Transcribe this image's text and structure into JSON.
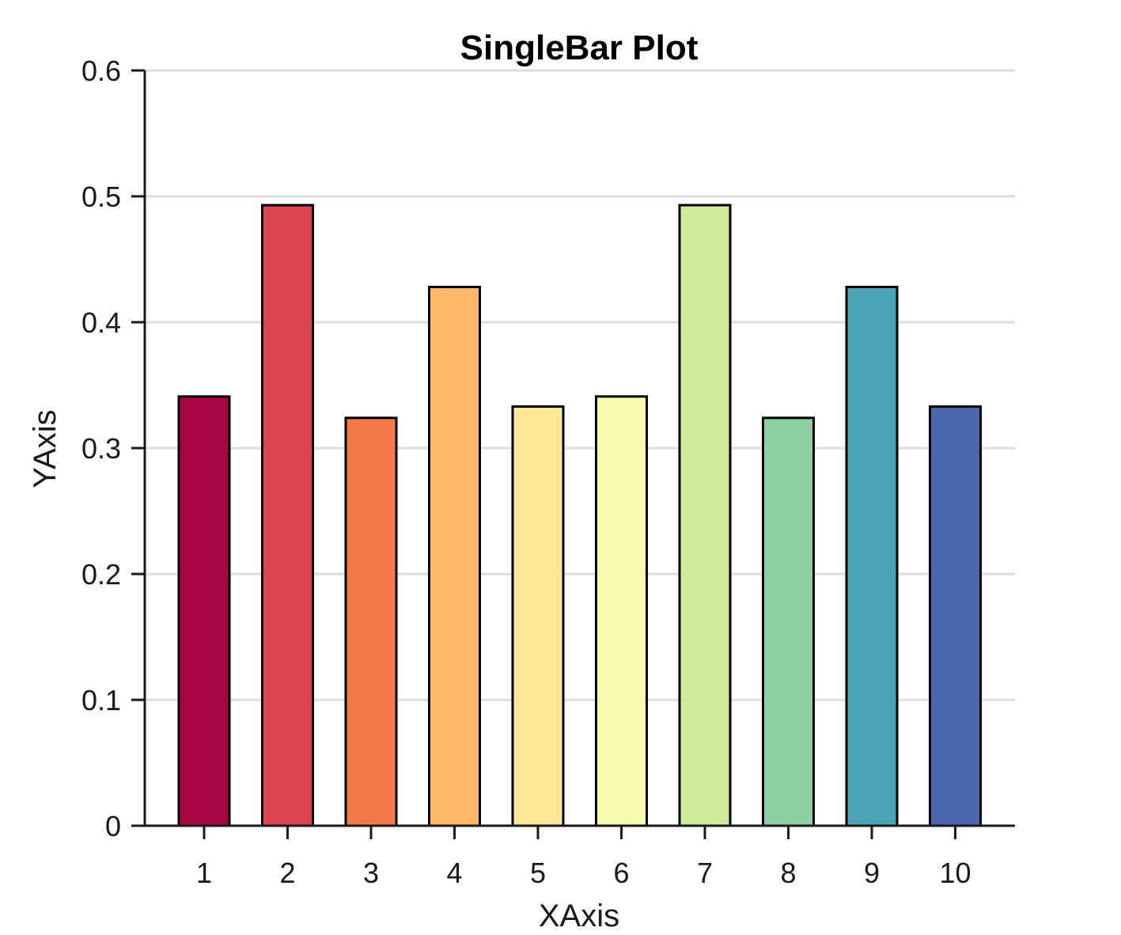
{
  "chart_data": {
    "type": "bar",
    "title": "SingleBar Plot",
    "xlabel": "XAxis",
    "ylabel": "YAxis",
    "categories": [
      "1",
      "2",
      "3",
      "4",
      "5",
      "6",
      "7",
      "8",
      "9",
      "10"
    ],
    "values": [
      0.341,
      0.493,
      0.324,
      0.428,
      0.333,
      0.341,
      0.493,
      0.324,
      0.428,
      0.333
    ],
    "ylim": [
      0,
      0.6
    ],
    "yticks": [
      0,
      0.1,
      0.2,
      0.3,
      0.4,
      0.5,
      0.6
    ],
    "ytick_labels": [
      "0",
      "0.1",
      "0.2",
      "0.3",
      "0.4",
      "0.5",
      "0.6"
    ],
    "bar_colors": [
      "#a50641",
      "#d9444f",
      "#f47a4b",
      "#fdb767",
      "#fee898",
      "#f7fbad",
      "#cfeb9b",
      "#8dd0a4",
      "#4ba5b6",
      "#4a66ad"
    ],
    "bar_edge_color": "#000000",
    "grid": true,
    "grid_axis": "y",
    "grid_color": "#dddddd",
    "axis_color": "#1a1a1a",
    "legend": false
  }
}
